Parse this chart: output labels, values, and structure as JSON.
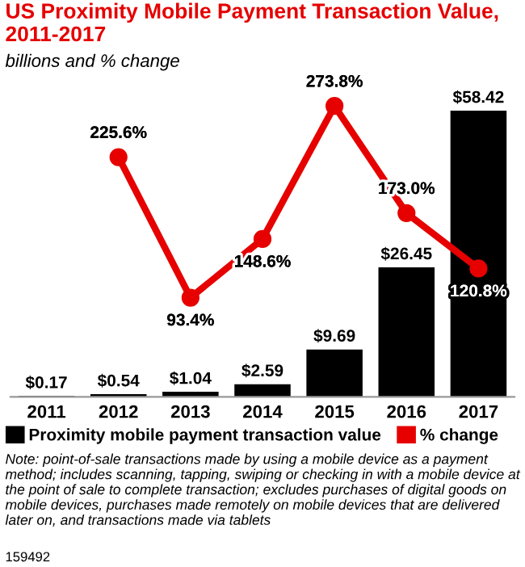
{
  "chart_data": {
    "type": "bar",
    "title": "US Proximity Mobile Payment Transaction Value, 2011-2017",
    "subtitle": "billions and % change",
    "categories": [
      "2011",
      "2012",
      "2013",
      "2014",
      "2015",
      "2016",
      "2017"
    ],
    "series": [
      {
        "name": "Proximity mobile payment transaction value",
        "color": "#000000",
        "values": [
          0.17,
          0.54,
          1.04,
          2.59,
          9.69,
          26.45,
          58.42
        ],
        "value_labels": [
          "$0.17",
          "$0.54",
          "$1.04",
          "$2.59",
          "$9.69",
          "$26.45",
          "$58.42"
        ]
      },
      {
        "name": "% change",
        "type": "line",
        "axis": "y2",
        "color": "#e60000",
        "values": [
          null,
          225.6,
          93.4,
          148.6,
          273.8,
          173.0,
          120.8
        ],
        "value_labels": [
          null,
          "225.6%",
          "93.4%",
          "148.6%",
          "273.8%",
          "173.0%",
          "120.8%"
        ]
      }
    ],
    "marker": "circle",
    "legend": "bottom",
    "grid": false,
    "tick_labels": "x",
    "annotations": [
      "Note: point-of-sale transactions made by using a mobile device as a payment method; includes scanning, tapping, swiping or checking in with a mobile device at the point of sale to complete transaction; excludes purchases of digital goods on mobile devices, purchases made remotely on mobile devices that are delivered later on, and transactions made via tablets",
      "159492"
    ]
  }
}
